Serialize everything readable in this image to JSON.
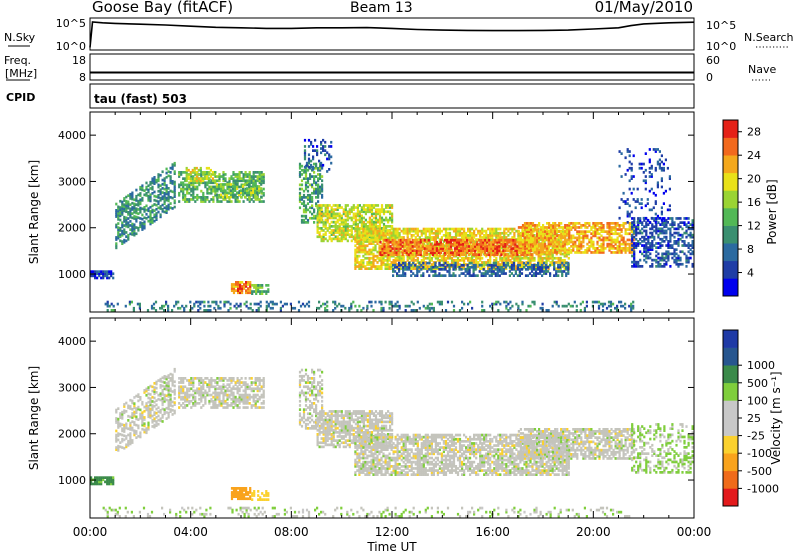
{
  "header": {
    "station": "Goose Bay (fitACF)",
    "beam": "Beam 13",
    "date": "01/May/2010"
  },
  "noise_panel": {
    "left_label": "N.Sky",
    "right_label": "N.Search",
    "left_ticks": [
      "10^5",
      "10^0"
    ],
    "right_ticks": [
      "10^5",
      "10^0"
    ]
  },
  "freq_panel": {
    "left_label_lines": [
      "Freq.",
      "[MHz]"
    ],
    "left_ticks": [
      "18",
      "8"
    ],
    "right_label": "Nave",
    "right_ticks": [
      "60",
      "0"
    ]
  },
  "cpid": {
    "label": "CPID",
    "value": "tau (fast) 503"
  },
  "colors": {
    "power": [
      "#0000ee",
      "#1f3da6",
      "#2b6aa0",
      "#3a8f70",
      "#52b856",
      "#9ad433",
      "#e9e118",
      "#f4a81c",
      "#f2691d",
      "#e52117"
    ],
    "velocity": [
      "#e31a1c",
      "#f06b1a",
      "#f9a31c",
      "#fbd12e",
      "#c8c8c8",
      "#c8c8c8",
      "#7fce3c",
      "#3a8a4a",
      "#27568f",
      "#1f3aa6"
    ],
    "ground_scatter": "#c4c4bc"
  },
  "chart_data": [
    {
      "type": "line",
      "panel": "noise",
      "x_unit": "hours UT",
      "series": [
        {
          "name": "N.Sky",
          "x": [
            0,
            0.1,
            0.5,
            1,
            2,
            3,
            4,
            5,
            6,
            7,
            8,
            9,
            10,
            11,
            12,
            13,
            14,
            15,
            16,
            17,
            18,
            19,
            20,
            21,
            21.5,
            22,
            23,
            24
          ],
          "y": [
            0.02,
            0.93,
            0.9,
            0.88,
            0.85,
            0.82,
            0.78,
            0.74,
            0.72,
            0.7,
            0.7,
            0.72,
            0.72,
            0.73,
            0.7,
            0.66,
            0.64,
            0.63,
            0.62,
            0.62,
            0.63,
            0.64,
            0.68,
            0.72,
            0.8,
            0.86,
            0.9,
            0.92
          ]
        }
      ]
    },
    {
      "type": "line",
      "panel": "frequency",
      "x_unit": "hours UT",
      "series": [
        {
          "name": "Freq.",
          "x": [
            0,
            24
          ],
          "y": [
            10.5,
            10.5
          ]
        }
      ]
    },
    {
      "type": "heatmap",
      "panel": "power",
      "title": "tau (fast) 503",
      "ylabel": "Slant Range [km]",
      "xlabel": "Time UT",
      "xlim": [
        0,
        24
      ],
      "ylim": [
        180,
        4500
      ],
      "x_ticks": [
        "00:00",
        "04:00",
        "08:00",
        "12:00",
        "16:00",
        "20:00",
        "00:00"
      ],
      "y_ticks": [
        "1000",
        "2000",
        "3000",
        "4000"
      ],
      "colorbar": {
        "label": "Power [dB]",
        "ticks": [
          "4",
          "8",
          "12",
          "16",
          "20",
          "24",
          "28"
        ],
        "range": [
          0,
          30
        ]
      },
      "regions": [
        {
          "t": [
            0.0,
            0.9
          ],
          "r": [
            900,
            1050
          ],
          "value": 4,
          "density": 0.9
        },
        {
          "t": [
            1.0,
            3.4
          ],
          "r": [
            1550,
            2500
          ],
          "value": 10,
          "density": 0.55,
          "slope": 380
        },
        {
          "t": [
            3.5,
            6.9
          ],
          "r": [
            2550,
            3200
          ],
          "value": 13,
          "density": 0.6
        },
        {
          "t": [
            3.8,
            5.0
          ],
          "r": [
            3000,
            3300
          ],
          "value": 18,
          "density": 0.5
        },
        {
          "t": [
            5.0,
            6.8
          ],
          "r": [
            2650,
            2950
          ],
          "value": 15,
          "density": 0.6
        },
        {
          "t": [
            5.6,
            6.4
          ],
          "r": [
            580,
            850
          ],
          "value": 24,
          "density": 0.85
        },
        {
          "t": [
            6.4,
            7.1
          ],
          "r": [
            560,
            760
          ],
          "value": 14,
          "density": 0.6
        },
        {
          "t": [
            0.5,
            21.6
          ],
          "r": [
            200,
            420
          ],
          "value": 9,
          "density": 0.25
        },
        {
          "t": [
            8.3,
            9.2
          ],
          "r": [
            2100,
            3400
          ],
          "value": 12,
          "density": 0.5
        },
        {
          "t": [
            8.5,
            9.6
          ],
          "r": [
            3200,
            3900
          ],
          "value": 6,
          "density": 0.25
        },
        {
          "t": [
            9.0,
            12.0
          ],
          "r": [
            1700,
            2500
          ],
          "value": 18,
          "density": 0.7
        },
        {
          "t": [
            10.5,
            19.0
          ],
          "r": [
            1100,
            2000
          ],
          "value": 20,
          "density": 0.7
        },
        {
          "t": [
            11.5,
            17.5
          ],
          "r": [
            1400,
            1750
          ],
          "value": 25,
          "density": 0.75
        },
        {
          "t": [
            12.0,
            19.0
          ],
          "r": [
            950,
            1250
          ],
          "value": 7,
          "density": 0.5
        },
        {
          "t": [
            17.0,
            21.6
          ],
          "r": [
            1450,
            2100
          ],
          "value": 22,
          "density": 0.65
        },
        {
          "t": [
            21.5,
            23.9
          ],
          "r": [
            1150,
            2200
          ],
          "value": 6,
          "density": 0.5
        },
        {
          "t": [
            21.0,
            23.0
          ],
          "r": [
            2100,
            3700
          ],
          "value": 5,
          "density": 0.15
        }
      ]
    },
    {
      "type": "heatmap",
      "panel": "velocity",
      "ylabel": "Slant Range [km]",
      "xlabel": "Time UT",
      "xlim": [
        0,
        24
      ],
      "ylim": [
        180,
        4500
      ],
      "x_ticks": [
        "00:00",
        "04:00",
        "08:00",
        "12:00",
        "16:00",
        "20:00",
        "00:00"
      ],
      "y_ticks": [
        "1000",
        "2000",
        "3000",
        "4000"
      ],
      "colorbar": {
        "label": "Velocity [m s⁻¹]",
        "ticks": [
          "-1000",
          "-500",
          "-100",
          "-25",
          "25",
          "100",
          "500",
          "1000"
        ]
      },
      "regions": [
        {
          "t": [
            0.0,
            0.9
          ],
          "r": [
            900,
            1050
          ],
          "value": 120,
          "density": 0.9
        },
        {
          "t": [
            1.0,
            3.4
          ],
          "r": [
            1550,
            2500
          ],
          "value": 0,
          "density": 0.5,
          "slope": 380
        },
        {
          "t": [
            3.5,
            6.9
          ],
          "r": [
            2550,
            3200
          ],
          "value": 0,
          "density": 0.6
        },
        {
          "t": [
            5.6,
            6.4
          ],
          "r": [
            580,
            850
          ],
          "value": -300,
          "density": 0.85
        },
        {
          "t": [
            6.4,
            7.1
          ],
          "r": [
            560,
            760
          ],
          "value": -60,
          "density": 0.55
        },
        {
          "t": [
            0.5,
            21.6
          ],
          "r": [
            200,
            420
          ],
          "value": 20,
          "density": 0.2
        },
        {
          "t": [
            8.3,
            9.2
          ],
          "r": [
            2100,
            3400
          ],
          "value": 0,
          "density": 0.45
        },
        {
          "t": [
            9.0,
            12.0
          ],
          "r": [
            1700,
            2500
          ],
          "value": 0,
          "density": 0.7
        },
        {
          "t": [
            10.5,
            19.0
          ],
          "r": [
            1100,
            2000
          ],
          "value": 0,
          "density": 0.7
        },
        {
          "t": [
            17.0,
            21.6
          ],
          "r": [
            1450,
            2100
          ],
          "value": 0,
          "density": 0.65
        },
        {
          "t": [
            21.5,
            23.9
          ],
          "r": [
            1150,
            2200
          ],
          "value": 30,
          "density": 0.35
        }
      ]
    }
  ]
}
